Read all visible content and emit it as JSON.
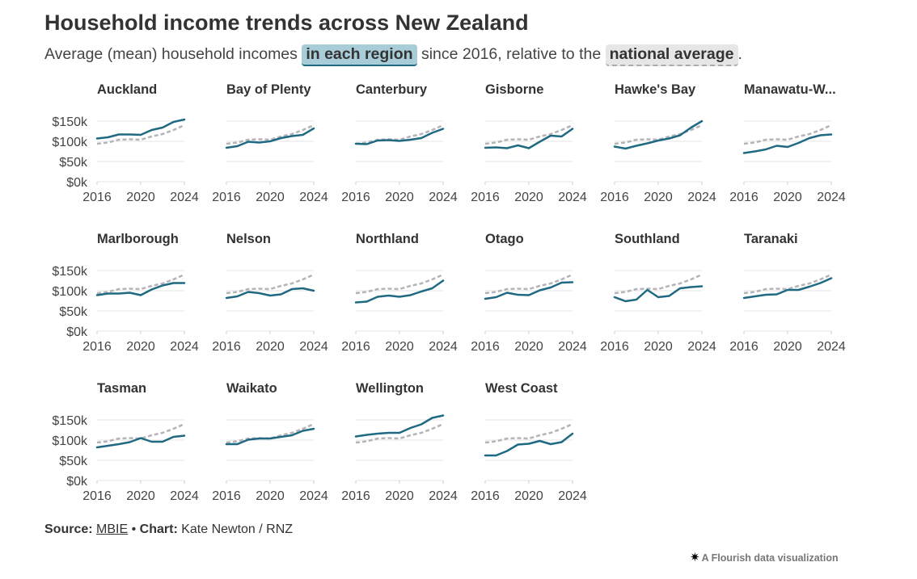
{
  "header": {
    "title": "Household income trends across New Zealand",
    "subtitle_before": "Average (mean) household incomes ",
    "subtitle_region": "in each region",
    "subtitle_middle": " since 2016, relative to the ",
    "subtitle_national": "national average",
    "subtitle_after": "."
  },
  "footer": {
    "source_label": "Source:",
    "source_link": "MBIE",
    "separator": " • ",
    "chart_label": "Chart:",
    "chart_credit": " Kate Newton / RNZ",
    "flourish_star": "✷",
    "flourish_text": "A Flourish data visualization"
  },
  "colors": {
    "region_line": "#1f6a82",
    "national_line": "#b4b4ba",
    "grid": "#e6e6e6",
    "axis_text": "#444444",
    "panel_title": "#333333",
    "region_highlight": "#a8cdd8",
    "national_highlight": "#e6e6e6"
  },
  "chart_data": {
    "type": "line",
    "layout": "small-multiples",
    "x": [
      2016,
      2017,
      2018,
      2019,
      2020,
      2021,
      2022,
      2023,
      2024
    ],
    "x_ticks": [
      "2016",
      "2020",
      "2024"
    ],
    "y_ticks": [
      "$0k",
      "$50k",
      "$100k",
      "$150k"
    ],
    "y_tick_values": [
      0,
      50000,
      100000,
      150000
    ],
    "ylim": [
      0,
      150000
    ],
    "xlabel": "",
    "ylabel": "",
    "national_series": {
      "name": "national average",
      "values": [
        94000,
        97000,
        104000,
        105000,
        104000,
        112000,
        118000,
        128000,
        140000
      ]
    },
    "panels": [
      {
        "name": "Auckland",
        "values": [
          107000,
          110000,
          117000,
          117000,
          116000,
          128000,
          134000,
          148000,
          154000
        ]
      },
      {
        "name": "Bay of Plenty",
        "values": [
          84000,
          88000,
          99000,
          97000,
          100000,
          108000,
          113000,
          116000,
          132000
        ]
      },
      {
        "name": "Canterbury",
        "values": [
          94000,
          93000,
          102000,
          103000,
          101000,
          104000,
          108000,
          121000,
          131000
        ]
      },
      {
        "name": "Gisborne",
        "values": [
          84000,
          85000,
          83000,
          90000,
          83000,
          99000,
          114000,
          112000,
          131000
        ]
      },
      {
        "name": "Hawke's Bay",
        "values": [
          87000,
          82000,
          89000,
          95000,
          102000,
          107000,
          115000,
          134000,
          150000
        ]
      },
      {
        "name": "Manawatu-W...",
        "values": [
          71000,
          75000,
          80000,
          89000,
          86000,
          96000,
          108000,
          115000,
          117000
        ]
      },
      {
        "name": "Marlborough",
        "values": [
          89000,
          93000,
          93000,
          95000,
          89000,
          103000,
          113000,
          119000,
          119000
        ]
      },
      {
        "name": "Nelson",
        "values": [
          82000,
          86000,
          97000,
          94000,
          88000,
          91000,
          104000,
          106000,
          100000
        ]
      },
      {
        "name": "Northland",
        "values": [
          71000,
          73000,
          85000,
          88000,
          85000,
          89000,
          98000,
          106000,
          125000
        ]
      },
      {
        "name": "Otago",
        "values": [
          80000,
          84000,
          95000,
          90000,
          89000,
          101000,
          108000,
          120000,
          121000
        ]
      },
      {
        "name": "Southland",
        "values": [
          84000,
          74000,
          78000,
          102000,
          84000,
          87000,
          106000,
          109000,
          111000
        ]
      },
      {
        "name": "Taranaki",
        "values": [
          82000,
          86000,
          90000,
          91000,
          102000,
          102000,
          110000,
          119000,
          131000
        ]
      },
      {
        "name": "Tasman",
        "values": [
          82000,
          86000,
          90000,
          95000,
          105000,
          96000,
          96000,
          108000,
          111000
        ]
      },
      {
        "name": "Waikato",
        "values": [
          90000,
          90000,
          101000,
          104000,
          104000,
          108000,
          112000,
          123000,
          128000
        ]
      },
      {
        "name": "Wellington",
        "values": [
          109000,
          113000,
          116000,
          118000,
          118000,
          130000,
          139000,
          155000,
          161000
        ]
      },
      {
        "name": "West Coast",
        "values": [
          62000,
          62000,
          73000,
          89000,
          91000,
          98000,
          90000,
          95000,
          116000
        ]
      }
    ]
  }
}
